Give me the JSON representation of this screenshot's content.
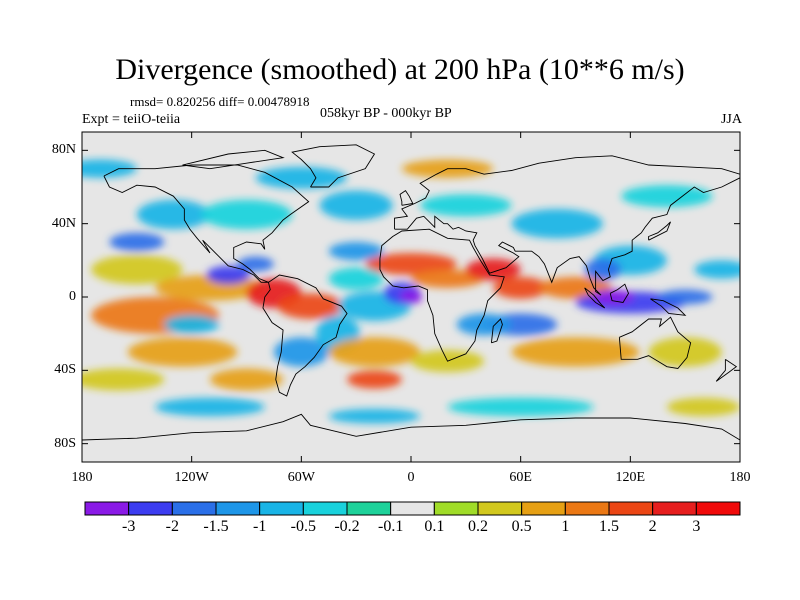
{
  "title": "Divergence (smoothed) at 200 hPa (10**6 m/s)",
  "stats": "rmsd= 0.820256 diff= 0.00478918",
  "experiment": "Expt = teiiO-teiia",
  "period": "058kyr BP - 000kyr BP",
  "season": "JJA",
  "map": {
    "projection": "cylindrical-equidistant",
    "lon_range": [
      -180,
      180
    ],
    "lat_range": [
      -90,
      90
    ],
    "lat_tick_labels": [
      "80N",
      "40N",
      "0",
      "40S",
      "80S"
    ],
    "lat_tick_values": [
      80,
      40,
      0,
      -40,
      -80
    ],
    "lon_tick_labels": [
      "180",
      "120W",
      "60W",
      "0",
      "60E",
      "120E",
      "180"
    ],
    "lon_tick_values": [
      -180,
      -120,
      -60,
      0,
      60,
      120,
      180
    ],
    "field": "filled-contour divergence difference"
  },
  "colorbar": {
    "labels": [
      "-3",
      "-2",
      "-1.5",
      "-1",
      "-0.5",
      "-0.2",
      "-0.1",
      "0.1",
      "0.2",
      "0.5",
      "1",
      "1.5",
      "2",
      "3"
    ],
    "colors": [
      "#8a1ae6",
      "#3c3cf0",
      "#2a6fe8",
      "#1e96e8",
      "#19b4e6",
      "#19d2dc",
      "#1ed29a",
      "#e6e6e6",
      "#a0dc28",
      "#d2c81e",
      "#e6a014",
      "#eb7814",
      "#eb4614",
      "#e61e1e",
      "#f00a0a"
    ]
  }
}
